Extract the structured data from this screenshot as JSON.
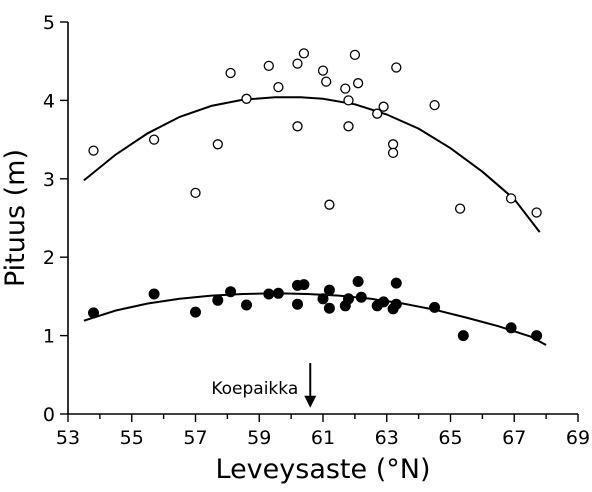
{
  "chart_data": {
    "type": "scatter",
    "xlabel": "Leveysaste (°N)",
    "ylabel": "Pituus (m)",
    "xlim": [
      53,
      69
    ],
    "ylim": [
      0,
      5
    ],
    "xticks": [
      53,
      55,
      57,
      59,
      61,
      63,
      65,
      67,
      69
    ],
    "xticks_minor": [
      54,
      56,
      58,
      60,
      62,
      64,
      66,
      68
    ],
    "yticks": [
      0,
      1,
      2,
      3,
      4,
      5
    ],
    "grid": false,
    "legend": "none",
    "series": [
      {
        "marker": "open-circle",
        "points": [
          [
            53.8,
            3.36
          ],
          [
            55.7,
            3.5
          ],
          [
            57.0,
            2.82
          ],
          [
            57.7,
            3.44
          ],
          [
            58.1,
            4.35
          ],
          [
            58.6,
            4.02
          ],
          [
            59.3,
            4.44
          ],
          [
            59.6,
            4.17
          ],
          [
            60.2,
            4.47
          ],
          [
            60.2,
            3.67
          ],
          [
            60.4,
            4.6
          ],
          [
            61.0,
            4.38
          ],
          [
            61.1,
            4.24
          ],
          [
            61.2,
            2.67
          ],
          [
            61.7,
            4.15
          ],
          [
            61.8,
            3.67
          ],
          [
            61.8,
            4.0
          ],
          [
            62.0,
            4.58
          ],
          [
            62.1,
            4.22
          ],
          [
            62.7,
            3.83
          ],
          [
            62.9,
            3.92
          ],
          [
            63.2,
            3.44
          ],
          [
            63.3,
            4.42
          ],
          [
            63.2,
            3.33
          ],
          [
            64.5,
            3.94
          ],
          [
            65.3,
            2.62
          ],
          [
            66.9,
            2.75
          ],
          [
            67.7,
            2.57
          ]
        ],
        "fit": [
          [
            53.5,
            2.98
          ],
          [
            54.5,
            3.31
          ],
          [
            55.5,
            3.58
          ],
          [
            56.5,
            3.79
          ],
          [
            57.5,
            3.93
          ],
          [
            58.5,
            4.01
          ],
          [
            59.5,
            4.04
          ],
          [
            60.3,
            4.04
          ],
          [
            61.0,
            4.02
          ],
          [
            62.0,
            3.95
          ],
          [
            63.0,
            3.82
          ],
          [
            64.0,
            3.64
          ],
          [
            65.0,
            3.39
          ],
          [
            66.0,
            3.09
          ],
          [
            67.0,
            2.74
          ],
          [
            67.8,
            2.32
          ]
        ]
      },
      {
        "marker": "filled-circle",
        "points": [
          [
            53.8,
            1.29
          ],
          [
            55.7,
            1.53
          ],
          [
            57.0,
            1.3
          ],
          [
            57.7,
            1.45
          ],
          [
            58.1,
            1.56
          ],
          [
            58.6,
            1.39
          ],
          [
            59.3,
            1.53
          ],
          [
            59.6,
            1.54
          ],
          [
            60.2,
            1.64
          ],
          [
            60.2,
            1.4
          ],
          [
            60.4,
            1.65
          ],
          [
            61.0,
            1.47
          ],
          [
            61.2,
            1.58
          ],
          [
            61.2,
            1.35
          ],
          [
            61.7,
            1.38
          ],
          [
            61.8,
            1.47
          ],
          [
            62.1,
            1.69
          ],
          [
            62.2,
            1.49
          ],
          [
            62.7,
            1.38
          ],
          [
            62.9,
            1.43
          ],
          [
            63.3,
            1.67
          ],
          [
            63.2,
            1.34
          ],
          [
            63.3,
            1.4
          ],
          [
            64.5,
            1.36
          ],
          [
            65.4,
            1.0
          ],
          [
            66.9,
            1.1
          ],
          [
            67.7,
            1.0
          ]
        ],
        "fit": [
          [
            53.5,
            1.19
          ],
          [
            54.5,
            1.32
          ],
          [
            55.5,
            1.41
          ],
          [
            56.5,
            1.47
          ],
          [
            57.5,
            1.51
          ],
          [
            58.5,
            1.53
          ],
          [
            59.5,
            1.54
          ],
          [
            60.5,
            1.53
          ],
          [
            61.5,
            1.51
          ],
          [
            62.5,
            1.47
          ],
          [
            63.5,
            1.41
          ],
          [
            64.5,
            1.33
          ],
          [
            65.5,
            1.23
          ],
          [
            66.5,
            1.12
          ],
          [
            67.5,
            0.99
          ],
          [
            68.0,
            0.88
          ]
        ]
      }
    ],
    "annotation": {
      "text": "Koepaikka",
      "x": 60.6,
      "arrow_from_y": 0.65,
      "arrow_to_y": 0.08
    }
  }
}
